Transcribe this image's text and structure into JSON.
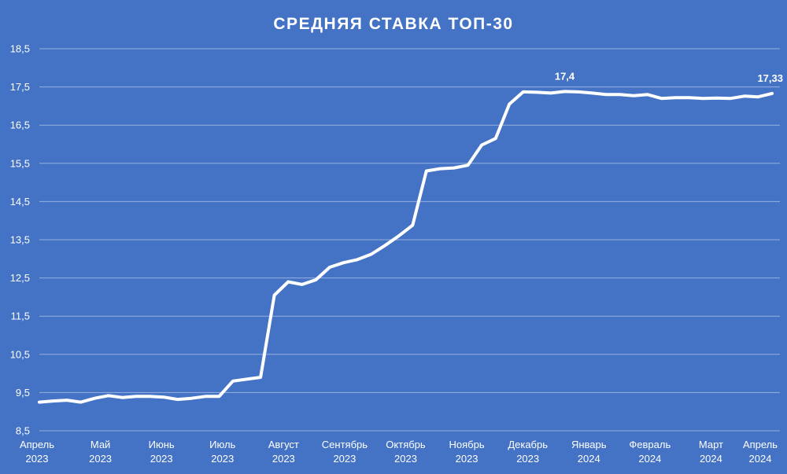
{
  "chart_data": {
    "type": "line",
    "title": "СРЕДНЯЯ СТАВКА ТОП-30",
    "xlabel": "",
    "ylabel": "",
    "ylim": [
      8.5,
      18.5
    ],
    "yticks": [
      "8,5",
      "9,5",
      "10,5",
      "11,5",
      "12,5",
      "13,5",
      "14,5",
      "15,5",
      "16,5",
      "17,5",
      "18,5"
    ],
    "grid": true,
    "legend": "none",
    "x_labels": [
      {
        "month": "Апрель",
        "year": "2023"
      },
      {
        "month": "Май",
        "year": "2023"
      },
      {
        "month": "Июнь",
        "year": "2023"
      },
      {
        "month": "Июль",
        "year": "2023"
      },
      {
        "month": "Август",
        "year": "2023"
      },
      {
        "month": "Сентябрь",
        "year": "2023"
      },
      {
        "month": "Октябрь",
        "year": "2023"
      },
      {
        "month": "Ноябрь",
        "year": "2023"
      },
      {
        "month": "Декабрь",
        "year": "2023"
      },
      {
        "month": "Январь",
        "year": "2024"
      },
      {
        "month": "Февраль",
        "year": "2024"
      },
      {
        "month": "Март",
        "year": "2024"
      },
      {
        "month": "Апрель",
        "year": "2024"
      }
    ],
    "series": [
      {
        "values": [
          9.25,
          9.28,
          9.3,
          9.25,
          9.35,
          9.42,
          9.37,
          9.4,
          9.4,
          9.38,
          9.32,
          9.35,
          9.4,
          9.4,
          9.8,
          9.85,
          9.9,
          12.05,
          12.4,
          12.33,
          12.45,
          12.78,
          12.9,
          12.98,
          13.12,
          13.35,
          13.6,
          13.88,
          15.3,
          15.36,
          15.38,
          15.45,
          15.98,
          16.15,
          17.05,
          17.37,
          17.36,
          17.34,
          17.38,
          17.37,
          17.34,
          17.3,
          17.3,
          17.27,
          17.3,
          17.2,
          17.22,
          17.22,
          17.2,
          17.21,
          17.2,
          17.26,
          17.24,
          17.33
        ]
      }
    ],
    "annotations": [
      {
        "index": 38,
        "text": "17,4"
      },
      {
        "index": 53,
        "text": "17,33"
      }
    ],
    "colors": {
      "background": "#4472c4",
      "line": "#ffffff"
    }
  }
}
